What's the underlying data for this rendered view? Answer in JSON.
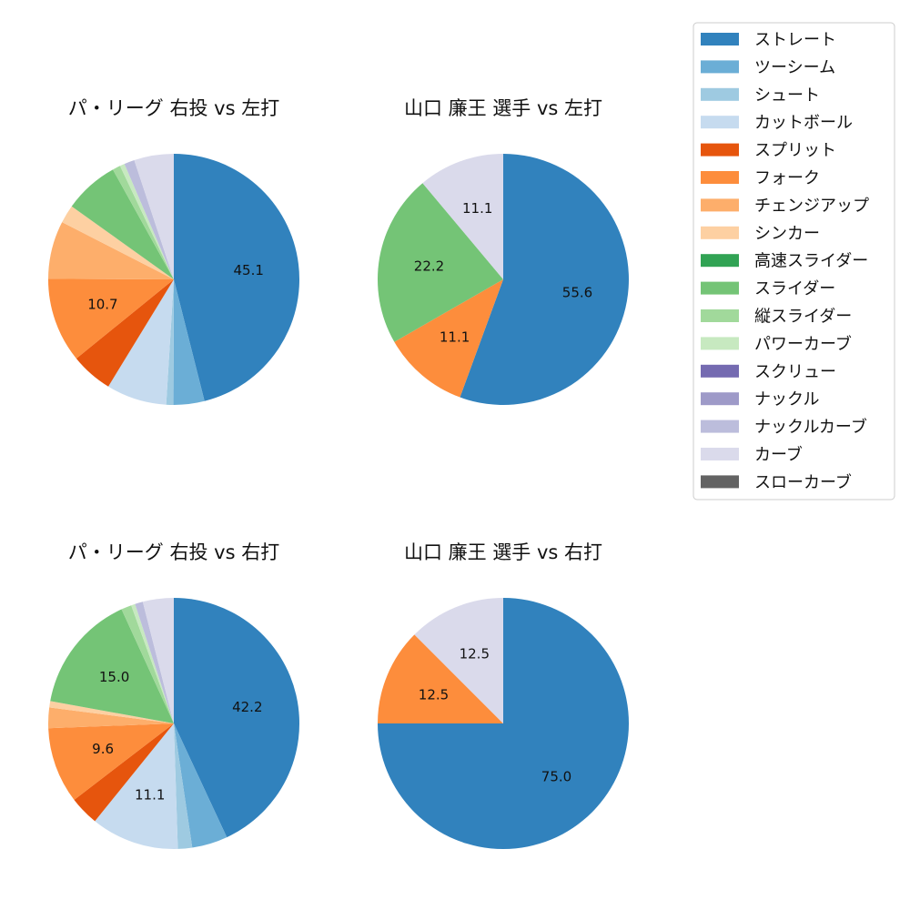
{
  "legend": {
    "entries": [
      {
        "name": "ストレート",
        "color": "#3182bd"
      },
      {
        "name": "ツーシーム",
        "color": "#6baed6"
      },
      {
        "name": "シュート",
        "color": "#9ecae1"
      },
      {
        "name": "カットボール",
        "color": "#c6dbef"
      },
      {
        "name": "スプリット",
        "color": "#e6550d"
      },
      {
        "name": "フォーク",
        "color": "#fd8d3c"
      },
      {
        "name": "チェンジアップ",
        "color": "#fdae6b"
      },
      {
        "name": "シンカー",
        "color": "#fdd0a2"
      },
      {
        "name": "高速スライダー",
        "color": "#31a354"
      },
      {
        "name": "スライダー",
        "color": "#74c476"
      },
      {
        "name": "縦スライダー",
        "color": "#a1d99b"
      },
      {
        "name": "パワーカーブ",
        "color": "#c7e9c0"
      },
      {
        "name": "スクリュー",
        "color": "#756bb1"
      },
      {
        "name": "ナックル",
        "color": "#9e9ac8"
      },
      {
        "name": "ナックルカーブ",
        "color": "#bcbddc"
      },
      {
        "name": "カーブ",
        "color": "#dadaeb"
      },
      {
        "name": "スローカーブ",
        "color": "#636363"
      }
    ]
  },
  "chart_data": [
    {
      "type": "pie",
      "title": "パ・リーグ 右投 vs 左打",
      "start_angle_deg": 90,
      "direction": "clockwise",
      "slices": [
        {
          "label": "ストレート",
          "value": 45.1,
          "data_label": "45.1"
        },
        {
          "label": "ツーシーム",
          "value": 3.9,
          "data_label": ""
        },
        {
          "label": "シュート",
          "value": 0.9,
          "data_label": ""
        },
        {
          "label": "カットボール",
          "value": 7.6,
          "data_label": ""
        },
        {
          "label": "スプリット",
          "value": 5.3,
          "data_label": ""
        },
        {
          "label": "フォーク",
          "value": 10.7,
          "data_label": "10.7"
        },
        {
          "label": "チェンジアップ",
          "value": 7.3,
          "data_label": ""
        },
        {
          "label": "シンカー",
          "value": 2.3,
          "data_label": ""
        },
        {
          "label": "スライダー",
          "value": 6.9,
          "data_label": ""
        },
        {
          "label": "縦スライダー",
          "value": 1.0,
          "data_label": ""
        },
        {
          "label": "パワーカーブ",
          "value": 0.6,
          "data_label": ""
        },
        {
          "label": "ナックルカーブ",
          "value": 1.3,
          "data_label": ""
        },
        {
          "label": "カーブ",
          "value": 5.0,
          "data_label": ""
        }
      ]
    },
    {
      "type": "pie",
      "title": "山口 廉王 選手 vs 左打",
      "start_angle_deg": 90,
      "direction": "clockwise",
      "slices": [
        {
          "label": "ストレート",
          "value": 55.6,
          "data_label": "55.6"
        },
        {
          "label": "フォーク",
          "value": 11.1,
          "data_label": "11.1"
        },
        {
          "label": "スライダー",
          "value": 22.2,
          "data_label": "22.2"
        },
        {
          "label": "カーブ",
          "value": 11.1,
          "data_label": "11.1"
        }
      ]
    },
    {
      "type": "pie",
      "title": "パ・リーグ 右投 vs 右打",
      "start_angle_deg": 90,
      "direction": "clockwise",
      "slices": [
        {
          "label": "ストレート",
          "value": 42.2,
          "data_label": "42.2"
        },
        {
          "label": "ツーシーム",
          "value": 4.5,
          "data_label": ""
        },
        {
          "label": "シュート",
          "value": 1.8,
          "data_label": ""
        },
        {
          "label": "カットボール",
          "value": 11.1,
          "data_label": "11.1"
        },
        {
          "label": "スプリット",
          "value": 3.7,
          "data_label": ""
        },
        {
          "label": "フォーク",
          "value": 9.6,
          "data_label": "9.6"
        },
        {
          "label": "チェンジアップ",
          "value": 2.6,
          "data_label": ""
        },
        {
          "label": "シンカー",
          "value": 0.8,
          "data_label": ""
        },
        {
          "label": "スライダー",
          "value": 15.0,
          "data_label": "15.0"
        },
        {
          "label": "縦スライダー",
          "value": 1.3,
          "data_label": ""
        },
        {
          "label": "パワーカーブ",
          "value": 0.5,
          "data_label": ""
        },
        {
          "label": "ナックルカーブ",
          "value": 1.0,
          "data_label": ""
        },
        {
          "label": "カーブ",
          "value": 3.9,
          "data_label": ""
        }
      ]
    },
    {
      "type": "pie",
      "title": "山口 廉王 選手 vs 右打",
      "start_angle_deg": 90,
      "direction": "clockwise",
      "slices": [
        {
          "label": "ストレート",
          "value": 75.0,
          "data_label": "75.0"
        },
        {
          "label": "フォーク",
          "value": 12.5,
          "data_label": "12.5"
        },
        {
          "label": "カーブ",
          "value": 12.5,
          "data_label": "12.5"
        }
      ]
    }
  ]
}
